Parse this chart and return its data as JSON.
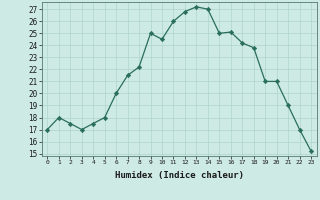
{
  "x": [
    0,
    1,
    2,
    3,
    4,
    5,
    6,
    7,
    8,
    9,
    10,
    11,
    12,
    13,
    14,
    15,
    16,
    17,
    18,
    19,
    20,
    21,
    22,
    23
  ],
  "y": [
    17,
    18,
    17.5,
    17,
    17.5,
    18,
    20,
    21.5,
    22.2,
    25,
    24.5,
    26,
    26.8,
    27.2,
    27.0,
    25,
    25.1,
    24.2,
    23.8,
    21.0,
    21.0,
    19.0,
    17.0,
    15.2
  ],
  "xlabel": "Humidex (Indice chaleur)",
  "xlim": [
    -0.5,
    23.5
  ],
  "ylim": [
    14.8,
    27.6
  ],
  "yticks": [
    15,
    16,
    17,
    18,
    19,
    20,
    21,
    22,
    23,
    24,
    25,
    26,
    27
  ],
  "xtick_labels": [
    "0",
    "1",
    "2",
    "3",
    "4",
    "5",
    "6",
    "7",
    "8",
    "9",
    "10",
    "11",
    "12",
    "13",
    "14",
    "15",
    "16",
    "17",
    "18",
    "19",
    "20",
    "21",
    "22",
    "23"
  ],
  "line_color": "#2a6e5e",
  "marker": "D",
  "marker_size": 2.2,
  "bg_color": "#cdeae4",
  "grid_color": "#aed4cc",
  "fig_bg": "#cdeae4"
}
